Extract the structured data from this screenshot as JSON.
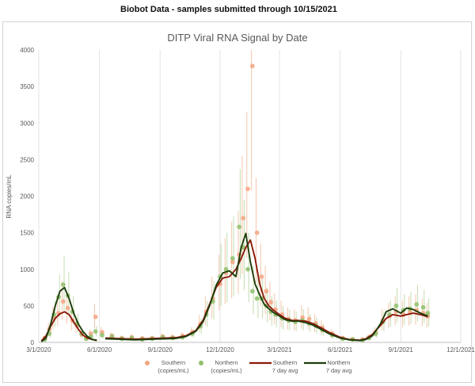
{
  "header": "Biobot Data - samples submitted through 10/15/2021",
  "chart_data": {
    "type": "scatter",
    "title": "DITP Viral RNA Signal by Date",
    "ylabel": "RNA copies/mL",
    "xlabel": "",
    "ylim": [
      0,
      4000
    ],
    "yticks": [
      0,
      500,
      1000,
      1500,
      2000,
      2500,
      3000,
      3500,
      4000
    ],
    "xlim": [
      "2020-03-01",
      "2021-12-01"
    ],
    "xticks": [
      {
        "date": "2020-03-01",
        "label": "3/1/2020"
      },
      {
        "date": "2020-06-01",
        "label": "6/1/2020"
      },
      {
        "date": "2020-09-01",
        "label": "9/1/2020"
      },
      {
        "date": "2020-12-01",
        "label": "12/1/2020"
      },
      {
        "date": "2021-03-01",
        "label": "3/1/2021"
      },
      {
        "date": "2021-06-01",
        "label": "6/1/2021"
      },
      {
        "date": "2021-09-01",
        "label": "9/1/2021"
      },
      {
        "date": "2021-12-01",
        "label": "12/1/2021"
      }
    ],
    "grid": "vertical",
    "legend_position": "bottom",
    "colors": {
      "southern": "#f4a582",
      "northern": "#8fbf6b",
      "southern_avg": "#8b1a0a",
      "northern_avg": "#1e3d0c",
      "error_south": "#f2b896",
      "error_north": "#b5d49a"
    },
    "series": [
      {
        "name": "Southern (copies/mL)",
        "kind": "points",
        "color": "southern",
        "x": [
          "2020-03-10",
          "2020-03-17",
          "2020-03-24",
          "2020-03-31",
          "2020-04-07",
          "2020-04-14",
          "2020-04-21",
          "2020-04-28",
          "2020-05-05",
          "2020-05-12",
          "2020-05-19",
          "2020-05-26",
          "2020-06-05",
          "2020-06-20",
          "2020-07-05",
          "2020-07-20",
          "2020-08-05",
          "2020-08-20",
          "2020-09-05",
          "2020-09-20",
          "2020-10-05",
          "2020-10-20",
          "2020-11-01",
          "2020-11-10",
          "2020-11-20",
          "2020-12-01",
          "2020-12-10",
          "2020-12-20",
          "2020-12-30",
          "2021-01-05",
          "2021-01-12",
          "2021-01-19",
          "2021-01-26",
          "2021-02-02",
          "2021-02-09",
          "2021-02-16",
          "2021-02-23",
          "2021-03-05",
          "2021-03-15",
          "2021-03-25",
          "2021-04-05",
          "2021-04-15",
          "2021-04-25",
          "2021-05-05",
          "2021-05-20",
          "2021-06-05",
          "2021-06-20",
          "2021-07-05",
          "2021-07-15",
          "2021-07-25",
          "2021-08-05",
          "2021-08-15",
          "2021-08-25",
          "2021-09-05",
          "2021-09-15",
          "2021-09-25",
          "2021-10-05",
          "2021-10-12"
        ],
        "y": [
          60,
          180,
          330,
          400,
          560,
          470,
          300,
          230,
          110,
          60,
          120,
          350,
          140,
          90,
          60,
          70,
          55,
          60,
          80,
          70,
          90,
          140,
          250,
          420,
          600,
          800,
          950,
          1100,
          1200,
          1700,
          2100,
          3780,
          1500,
          900,
          700,
          550,
          450,
          380,
          320,
          300,
          340,
          320,
          260,
          200,
          120,
          60,
          45,
          40,
          70,
          140,
          300,
          360,
          420,
          380,
          420,
          440,
          400,
          360
        ]
      },
      {
        "name": "Northern (copies/mL)",
        "kind": "points",
        "color": "northern",
        "x": [
          "2020-03-10",
          "2020-03-17",
          "2020-03-24",
          "2020-03-31",
          "2020-04-07",
          "2020-04-14",
          "2020-04-21",
          "2020-04-28",
          "2020-05-05",
          "2020-05-12",
          "2020-05-19",
          "2020-05-26",
          "2020-06-05",
          "2020-06-20",
          "2020-07-05",
          "2020-07-20",
          "2020-08-05",
          "2020-08-20",
          "2020-09-05",
          "2020-09-20",
          "2020-10-05",
          "2020-10-20",
          "2020-11-01",
          "2020-11-10",
          "2020-11-20",
          "2020-12-01",
          "2020-12-10",
          "2020-12-20",
          "2020-12-30",
          "2021-01-05",
          "2021-01-12",
          "2021-01-19",
          "2021-01-26",
          "2021-02-02",
          "2021-02-09",
          "2021-02-16",
          "2021-02-23",
          "2021-03-05",
          "2021-03-15",
          "2021-03-25",
          "2021-04-05",
          "2021-04-15",
          "2021-04-25",
          "2021-05-05",
          "2021-05-20",
          "2021-06-05",
          "2021-06-20",
          "2021-07-05",
          "2021-07-15",
          "2021-07-25",
          "2021-08-05",
          "2021-08-15",
          "2021-08-25",
          "2021-09-05",
          "2021-09-15",
          "2021-09-25",
          "2021-10-05",
          "2021-10-12"
        ],
        "y": [
          40,
          120,
          380,
          620,
          790,
          640,
          420,
          260,
          120,
          50,
          80,
          150,
          100,
          80,
          50,
          60,
          40,
          50,
          70,
          60,
          70,
          120,
          220,
          380,
          560,
          900,
          1000,
          1150,
          1580,
          1300,
          1000,
          700,
          600,
          600,
          500,
          420,
          380,
          330,
          300,
          280,
          300,
          260,
          230,
          170,
          100,
          50,
          40,
          30,
          60,
          120,
          280,
          380,
          500,
          440,
          460,
          520,
          480,
          400
        ]
      },
      {
        "name": "Southern 7 day avg",
        "kind": "line",
        "color": "southern_avg",
        "x": [
          "2020-03-05",
          "2020-03-12",
          "2020-03-19",
          "2020-03-26",
          "2020-04-02",
          "2020-04-09",
          "2020-04-16",
          "2020-04-23",
          "2020-04-30",
          "2020-05-07",
          "2020-05-14",
          "2020-05-21",
          "2020-05-28",
          "2020-06-10",
          "2020-06-25",
          "2020-07-10",
          "2020-07-25",
          "2020-08-10",
          "2020-08-25",
          "2020-09-10",
          "2020-09-25",
          "2020-10-10",
          "2020-10-25",
          "2020-11-05",
          "2020-11-15",
          "2020-11-25",
          "2020-12-05",
          "2020-12-15",
          "2020-12-25",
          "2021-01-02",
          "2021-01-09",
          "2021-01-16",
          "2021-01-23",
          "2021-01-30",
          "2021-02-06",
          "2021-02-13",
          "2021-02-20",
          "2021-03-01",
          "2021-03-10",
          "2021-03-20",
          "2021-03-30",
          "2021-04-10",
          "2021-04-20",
          "2021-05-01",
          "2021-05-15",
          "2021-06-01",
          "2021-06-15",
          "2021-07-01",
          "2021-07-10",
          "2021-07-20",
          "2021-08-01",
          "2021-08-10",
          "2021-08-20",
          "2021-09-01",
          "2021-09-10",
          "2021-09-20",
          "2021-10-01",
          "2021-10-12"
        ],
        "y": [
          20,
          90,
          220,
          330,
          390,
          420,
          380,
          280,
          180,
          100,
          60,
          40,
          30,
          60,
          55,
          50,
          45,
          50,
          55,
          60,
          65,
          90,
          160,
          300,
          520,
          750,
          880,
          900,
          1000,
          1150,
          1300,
          1400,
          1150,
          800,
          600,
          500,
          440,
          380,
          330,
          300,
          300,
          290,
          260,
          210,
          140,
          70,
          40,
          30,
          50,
          110,
          230,
          330,
          380,
          360,
          380,
          400,
          380,
          350
        ]
      },
      {
        "name": "Northern 7 day avg",
        "kind": "line",
        "color": "northern_avg",
        "x": [
          "2020-03-05",
          "2020-03-12",
          "2020-03-19",
          "2020-03-26",
          "2020-04-02",
          "2020-04-09",
          "2020-04-16",
          "2020-04-23",
          "2020-04-30",
          "2020-05-07",
          "2020-05-14",
          "2020-05-21",
          "2020-05-28",
          "2020-06-10",
          "2020-06-25",
          "2020-07-10",
          "2020-07-25",
          "2020-08-10",
          "2020-08-25",
          "2020-09-10",
          "2020-09-25",
          "2020-10-10",
          "2020-10-25",
          "2020-11-05",
          "2020-11-15",
          "2020-11-25",
          "2020-12-05",
          "2020-12-15",
          "2020-12-25",
          "2021-01-02",
          "2021-01-09",
          "2021-01-16",
          "2021-01-23",
          "2021-01-30",
          "2021-02-06",
          "2021-02-13",
          "2021-02-20",
          "2021-03-01",
          "2021-03-10",
          "2021-03-20",
          "2021-03-30",
          "2021-04-10",
          "2021-04-20",
          "2021-05-01",
          "2021-05-15",
          "2021-06-01",
          "2021-06-15",
          "2021-07-01",
          "2021-07-10",
          "2021-07-20",
          "2021-08-01",
          "2021-08-10",
          "2021-08-20",
          "2021-09-01",
          "2021-09-10",
          "2021-09-20",
          "2021-10-01",
          "2021-10-12"
        ],
        "y": [
          10,
          60,
          250,
          500,
          700,
          750,
          600,
          400,
          250,
          150,
          80,
          40,
          25,
          50,
          45,
          40,
          35,
          40,
          45,
          50,
          55,
          80,
          150,
          280,
          500,
          780,
          950,
          980,
          900,
          1300,
          1490,
          1100,
          800,
          650,
          520,
          460,
          410,
          360,
          310,
          290,
          290,
          270,
          240,
          190,
          120,
          60,
          35,
          25,
          40,
          90,
          250,
          420,
          460,
          400,
          470,
          450,
          400,
          360
        ]
      }
    ]
  },
  "legend": [
    {
      "line1": "Southern",
      "line2": "(copies/mL)"
    },
    {
      "line1": "Northern",
      "line2": "(copies/mL)"
    },
    {
      "line1": "Southern",
      "line2": "7 day avg"
    },
    {
      "line1": "Northern",
      "line2": "7 day avg"
    }
  ]
}
